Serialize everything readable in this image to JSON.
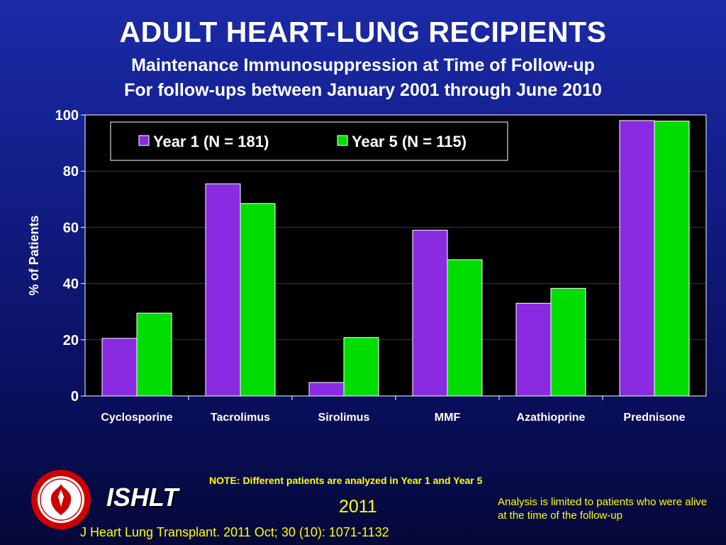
{
  "header": {
    "title": "ADULT HEART-LUNG RECIPIENTS",
    "subtitle_1": "Maintenance Immunosuppression at Time of Follow-up",
    "subtitle_2": "For follow-ups between January 2001 through June 2010"
  },
  "chart_data": {
    "type": "bar",
    "categories": [
      "Cyclosporine",
      "Tacrolimus",
      "Sirolimus",
      "MMF",
      "Azathioprine",
      "Prednisone"
    ],
    "series": [
      {
        "name": "Year 1 (N = 181)",
        "values": [
          20.5,
          75.5,
          4.8,
          59.0,
          33.0,
          98.0
        ],
        "color": "#8a2be2"
      },
      {
        "name": "Year 5 (N = 115)",
        "values": [
          29.5,
          68.5,
          20.8,
          48.5,
          38.3,
          97.8
        ],
        "color": "#00dd00"
      }
    ],
    "ylabel": "% of Patients",
    "xlabel": "",
    "ylim": [
      0,
      100
    ],
    "yticks": [
      0,
      20,
      40,
      60,
      80,
      100
    ],
    "grid": true,
    "legend_position": "top"
  },
  "footer": {
    "note": "NOTE: Different patients are analyzed in Year 1 and Year 5",
    "brand": "ISHLT",
    "year": "2011",
    "analysis_note": "Analysis is limited to patients who were alive at the time of the follow-up",
    "citation": "J Heart Lung Transplant. 2011 Oct; 30 (10): 1071-1132"
  },
  "logo": {
    "label": "International Society for Heart & Lung Transplantation",
    "ring_color": "#cc0000"
  }
}
